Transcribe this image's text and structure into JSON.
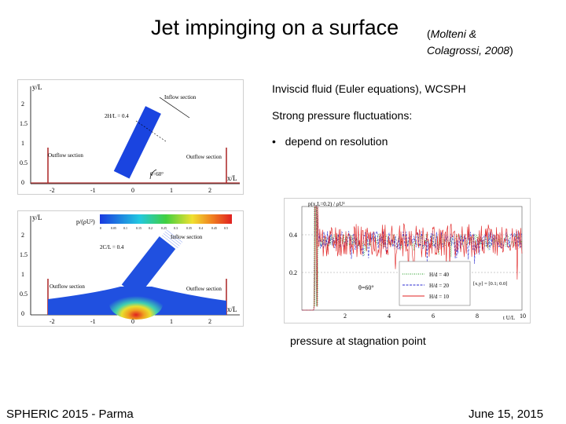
{
  "slide": {
    "title": "Jet impinging on a surface",
    "citation_paren_open": "(",
    "citation_line1": "Molteni &",
    "citation_line2": "Colagrossi, 2008",
    "citation_paren_close": ")",
    "bullets": [
      "Inviscid fluid (Euler equations), WCSPH",
      "Strong pressure fluctuations:"
    ],
    "sub_bullet_marker": "•",
    "sub_bullet": "depend on resolution",
    "caption": "pressure at stagnation point",
    "footer_left": "SPHERIC 2015 - Parma",
    "footer_right": "June 15, 2015"
  },
  "figure_top": {
    "y_axis_label": "y/L",
    "x_axis_label": "x/L",
    "y_ticks": [
      "2",
      "1.5",
      "1",
      "0.5",
      "0"
    ],
    "x_ticks": [
      "-2",
      "-1",
      "0",
      "1",
      "2"
    ],
    "inflow_label": "Inflow section",
    "width_label": "2H/L = 0.4",
    "left_outflow_label": "Outflow section",
    "right_outflow_label": "Outflow section",
    "angle_label": "θ=60°",
    "colors": {
      "jet": "#1a44e0",
      "wall": "#b03030"
    }
  },
  "figure_bottom": {
    "y_axis_label": "y/L",
    "x_axis_label": "x/L",
    "colorbar_label": "p/(ρU²)",
    "colorbar_ticks": [
      "0",
      "0.05",
      "0.1",
      "0.15",
      "0.2",
      "0.25",
      "0.3",
      "0.35",
      "0.4",
      "0.45",
      "0.5"
    ],
    "y_ticks": [
      "2",
      "1.5",
      "1",
      "0.5",
      "0"
    ],
    "x_ticks": [
      "-2",
      "-1",
      "0",
      "1",
      "2"
    ],
    "inflow_label": "Inflow section",
    "width_label": "2C/L = 0.4",
    "left_outflow_label": "Outflow section",
    "right_outflow_label": "Outflow section"
  },
  "chart_data": {
    "type": "line",
    "title": "",
    "ylabel": "p(x,L=0.2) / ρU²",
    "xlabel": "t U/L",
    "xlim": [
      0,
      10
    ],
    "ylim": [
      0,
      0.55
    ],
    "x_ticks": [
      2,
      4,
      6,
      8,
      10
    ],
    "y_ticks": [
      0.2,
      0.4
    ],
    "y_tick_labels": [
      "0.2",
      "0.4"
    ],
    "annotation_angle": "θ=60°",
    "annotation_point": "[x,y] = [0.1; 0.0]",
    "series": [
      {
        "name": "H/d = 40",
        "color": "#1a9a1a",
        "style": "dotted",
        "baseline": 0.37,
        "noise": 0.035,
        "seed": 3
      },
      {
        "name": "H/d = 20",
        "color": "#2a2ad0",
        "style": "dashed",
        "baseline": 0.37,
        "noise": 0.05,
        "seed": 7
      },
      {
        "name": "H/d = 10",
        "color": "#e02020",
        "style": "solid",
        "baseline": 0.37,
        "noise": 0.09,
        "seed": 11
      }
    ]
  }
}
